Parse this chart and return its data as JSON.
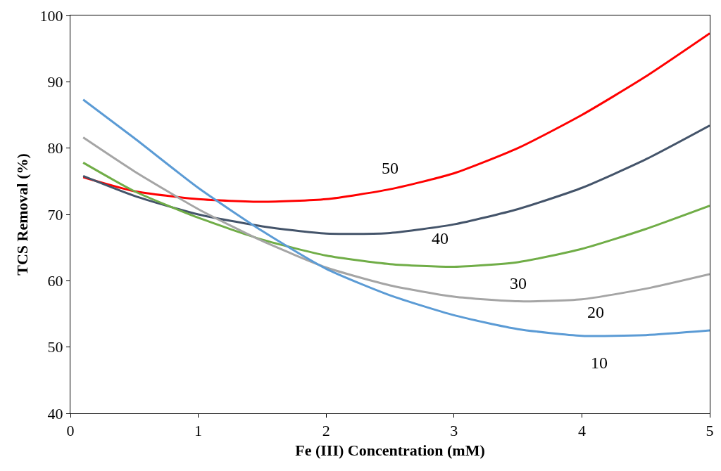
{
  "chart_data": {
    "type": "line",
    "xlabel": "Fe (III) Concentration (mM)",
    "ylabel": "TCS Removal (%)",
    "x": [
      0.1,
      0.5,
      1,
      1.5,
      2,
      2.5,
      3,
      3.5,
      4,
      4.5,
      5
    ],
    "series": [
      {
        "name": "50",
        "color": "#ff0000",
        "values": [
          75.6,
          73.5,
          72.3,
          71.9,
          72.3,
          73.8,
          76.2,
          80.0,
          85.0,
          90.8,
          97.3
        ]
      },
      {
        "name": "40",
        "color": "#44546a",
        "values": [
          75.8,
          72.8,
          70.0,
          68.2,
          67.1,
          67.2,
          68.5,
          70.8,
          74.0,
          78.3,
          83.4
        ]
      },
      {
        "name": "30",
        "color": "#70ad47",
        "values": [
          77.8,
          73.5,
          69.5,
          66.2,
          63.8,
          62.5,
          62.1,
          62.8,
          64.8,
          67.8,
          71.3
        ]
      },
      {
        "name": "20",
        "color": "#a5a5a5",
        "values": [
          81.6,
          76.5,
          70.8,
          66.0,
          62.0,
          59.3,
          57.6,
          56.9,
          57.2,
          58.8,
          61.0
        ]
      },
      {
        "name": "10",
        "color": "#5b9bd5",
        "values": [
          87.3,
          81.5,
          74.0,
          67.5,
          61.8,
          57.8,
          54.8,
          52.7,
          51.7,
          51.8,
          52.5
        ]
      }
    ],
    "xlim": [
      0,
      5
    ],
    "xticks": [
      0,
      1,
      2,
      3,
      4,
      5
    ],
    "ylim": [
      40,
      100
    ],
    "yticks": [
      40,
      50,
      60,
      70,
      80,
      90,
      100
    ],
    "grid": false,
    "legend": false,
    "marker": "none",
    "line_style": "solid"
  }
}
